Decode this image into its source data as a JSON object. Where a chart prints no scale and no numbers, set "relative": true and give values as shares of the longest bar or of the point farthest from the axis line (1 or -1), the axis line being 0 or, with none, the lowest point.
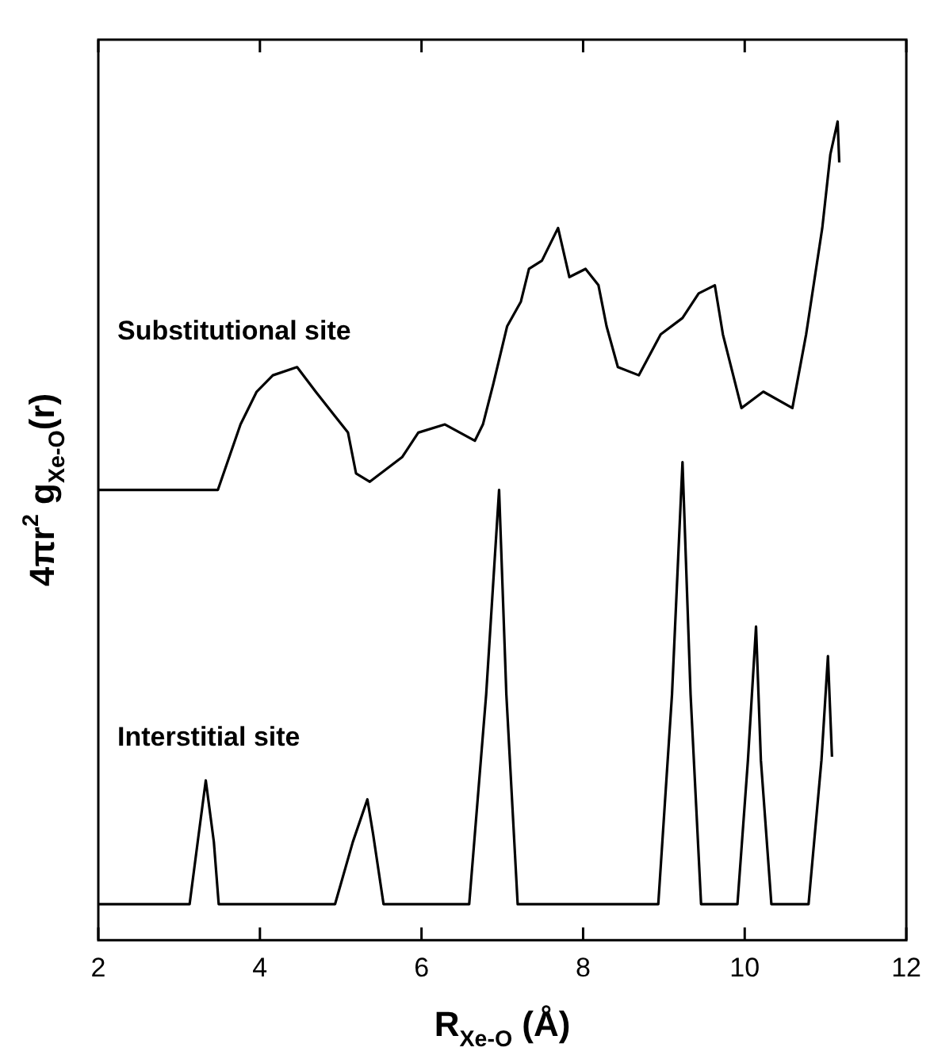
{
  "chart_data": {
    "type": "line",
    "relative": true,
    "xlabel": "R$_{Xe-O}$ (Å)",
    "ylabel": "4πr$^{2}$ g$_{Xe-O}$(r)",
    "xlim": [
      2,
      12
    ],
    "xticks": [
      2,
      4,
      6,
      8,
      10,
      12
    ],
    "legend": false,
    "grid": false,
    "marker": "none",
    "line_style": "solid",
    "series": [
      {
        "name": "Substitutional site",
        "color": "#000000",
        "x": [
          2.0,
          3.48,
          3.76,
          3.96,
          4.16,
          4.46,
          4.69,
          4.93,
          5.09,
          5.19,
          5.36,
          5.76,
          5.96,
          6.29,
          6.66,
          6.76,
          6.89,
          7.06,
          7.23,
          7.33,
          7.49,
          7.69,
          7.83,
          8.03,
          8.19,
          8.29,
          8.43,
          8.69,
          8.96,
          9.23,
          9.43,
          9.63,
          9.73,
          9.96,
          10.23,
          10.59,
          10.76,
          10.96,
          11.06,
          11.15,
          11.17
        ],
        "values": [
          0.55,
          0.55,
          0.63,
          0.67,
          0.69,
          0.7,
          0.67,
          0.64,
          0.62,
          0.57,
          0.56,
          0.59,
          0.62,
          0.63,
          0.61,
          0.63,
          0.68,
          0.75,
          0.78,
          0.82,
          0.83,
          0.87,
          0.81,
          0.82,
          0.8,
          0.75,
          0.7,
          0.69,
          0.74,
          0.76,
          0.79,
          0.8,
          0.74,
          0.65,
          0.67,
          0.65,
          0.74,
          0.87,
          0.96,
          1.0,
          0.95
        ]
      },
      {
        "name": "Interstitial site",
        "color": "#000000",
        "x": [
          2.0,
          3.13,
          3.23,
          3.33,
          3.43,
          3.49,
          4.93,
          5.15,
          5.33,
          5.4,
          5.53,
          6.59,
          6.8,
          6.96,
          7.05,
          7.19,
          8.93,
          9.1,
          9.23,
          9.33,
          9.46,
          9.91,
          10.04,
          10.14,
          10.2,
          10.33,
          10.79,
          10.95,
          11.03,
          11.08
        ],
        "values": [
          0.044,
          0.044,
          0.12,
          0.195,
          0.12,
          0.044,
          0.044,
          0.12,
          0.172,
          0.13,
          0.044,
          0.044,
          0.3,
          0.55,
          0.3,
          0.044,
          0.044,
          0.3,
          0.584,
          0.3,
          0.044,
          0.044,
          0.22,
          0.383,
          0.22,
          0.044,
          0.044,
          0.22,
          0.347,
          0.224
        ]
      }
    ]
  }
}
